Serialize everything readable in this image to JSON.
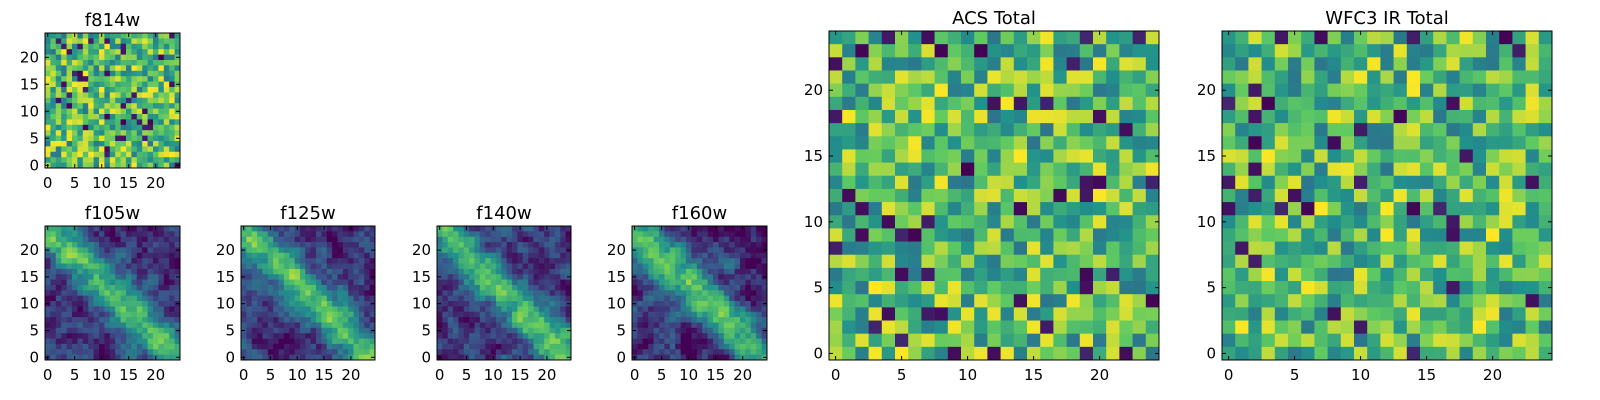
{
  "colormap": [
    "#440154",
    "#3b528b",
    "#21918c",
    "#5ec962",
    "#fde725"
  ],
  "chart_data": [
    {
      "id": "f814w",
      "type": "heatmap",
      "title": "f814w",
      "grid": "25x25",
      "pattern": "noise",
      "seed": 11,
      "x_ticks": [
        "0",
        "5",
        "10",
        "15",
        "20"
      ],
      "y_ticks": [
        "0",
        "5",
        "10",
        "15",
        "20"
      ],
      "grid_lines": false
    },
    {
      "id": "f105w",
      "type": "heatmap",
      "title": "f105w",
      "grid": "25x25",
      "pattern": "diagonal band",
      "seed": 23,
      "x_ticks": [
        "0",
        "5",
        "10",
        "15",
        "20"
      ],
      "y_ticks": [
        "0",
        "5",
        "10",
        "15",
        "20"
      ],
      "grid_lines": false
    },
    {
      "id": "f125w",
      "type": "heatmap",
      "title": "f125w",
      "grid": "25x25",
      "pattern": "diagonal band",
      "seed": 37,
      "x_ticks": [
        "0",
        "5",
        "10",
        "15",
        "20"
      ],
      "y_ticks": [
        "0",
        "5",
        "10",
        "15",
        "20"
      ],
      "grid_lines": false
    },
    {
      "id": "f140w",
      "type": "heatmap",
      "title": "f140w",
      "grid": "25x25",
      "pattern": "diagonal band",
      "seed": 41,
      "x_ticks": [
        "0",
        "5",
        "10",
        "15",
        "20"
      ],
      "y_ticks": [
        "0",
        "5",
        "10",
        "15",
        "20"
      ],
      "grid_lines": false
    },
    {
      "id": "f160w",
      "type": "heatmap",
      "title": "f160w",
      "grid": "25x25",
      "pattern": "diagonal band",
      "seed": 53,
      "x_ticks": [
        "0",
        "5",
        "10",
        "15",
        "20"
      ],
      "y_ticks": [
        "0",
        "5",
        "10",
        "15",
        "20"
      ],
      "grid_lines": false
    },
    {
      "id": "acs-total",
      "type": "heatmap",
      "title": "ACS Total",
      "grid": "25x25",
      "pattern": "noise",
      "seed": 67,
      "x_ticks": [
        "0",
        "5",
        "10",
        "15",
        "20"
      ],
      "y_ticks": [
        "0",
        "5",
        "10",
        "15",
        "20"
      ],
      "grid_lines": false
    },
    {
      "id": "wfc3-ir-total",
      "type": "heatmap",
      "title": "WFC3 IR Total",
      "grid": "25x25",
      "pattern": "noise",
      "seed": 79,
      "x_ticks": [
        "0",
        "5",
        "10",
        "15",
        "20"
      ],
      "y_ticks": [
        "0",
        "5",
        "10",
        "15",
        "20"
      ],
      "grid_lines": false
    }
  ]
}
